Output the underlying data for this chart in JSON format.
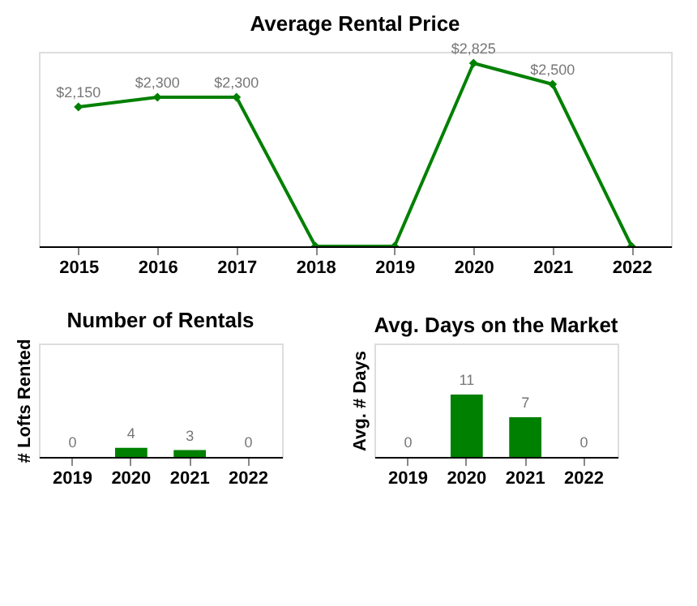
{
  "chart_data": [
    {
      "type": "line",
      "title": "Average Rental Price",
      "categories": [
        "2015",
        "2016",
        "2017",
        "2018",
        "2019",
        "2020",
        "2021",
        "2022"
      ],
      "series": [
        {
          "color": "#008000",
          "values": [
            2150,
            2300,
            2300,
            0,
            0,
            2825,
            2500,
            0
          ],
          "value_labels": [
            "$2,150",
            "$2,300",
            "$2,300",
            null,
            null,
            "$2,825",
            "$2,500",
            null
          ]
        }
      ],
      "ylim": [
        0,
        3000
      ],
      "tick_labels": "x",
      "marker": "diamond",
      "grid": false
    },
    {
      "type": "bar",
      "title": "Number of Rentals",
      "ylabel": "# Lofts Rented",
      "categories": [
        "2019",
        "2020",
        "2021",
        "2022"
      ],
      "values": [
        0,
        4,
        3,
        0
      ],
      "color": "#008000",
      "ylim": [
        0,
        50
      ],
      "tick_labels": "x",
      "data_labels": true,
      "grid": false
    },
    {
      "type": "bar",
      "title": "Avg. Days on the Market",
      "ylabel": "Avg. # Days",
      "categories": [
        "2019",
        "2020",
        "2021",
        "2022"
      ],
      "values": [
        0,
        11,
        7,
        0
      ],
      "color": "#008000",
      "ylim": [
        0,
        20
      ],
      "tick_labels": "x",
      "data_labels": true,
      "grid": false
    }
  ]
}
